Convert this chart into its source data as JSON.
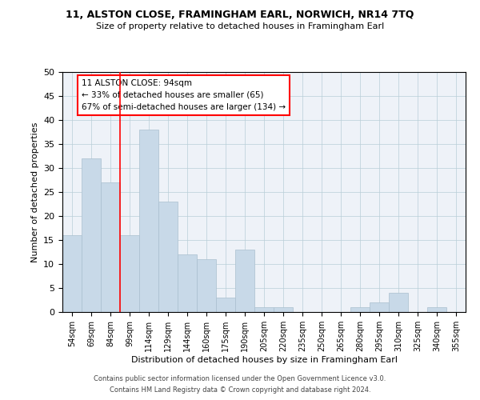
{
  "title1": "11, ALSTON CLOSE, FRAMINGHAM EARL, NORWICH, NR14 7TQ",
  "title2": "Size of property relative to detached houses in Framingham Earl",
  "xlabel": "Distribution of detached houses by size in Framingham Earl",
  "ylabel": "Number of detached properties",
  "categories": [
    "54sqm",
    "69sqm",
    "84sqm",
    "99sqm",
    "114sqm",
    "129sqm",
    "144sqm",
    "160sqm",
    "175sqm",
    "190sqm",
    "205sqm",
    "220sqm",
    "235sqm",
    "250sqm",
    "265sqm",
    "280sqm",
    "295sqm",
    "310sqm",
    "325sqm",
    "340sqm",
    "355sqm"
  ],
  "values": [
    16,
    32,
    27,
    16,
    38,
    23,
    12,
    11,
    3,
    13,
    1,
    1,
    0,
    0,
    0,
    1,
    2,
    4,
    0,
    1,
    0
  ],
  "bar_color": "#c8d9e8",
  "bar_edgecolor": "#aabfcf",
  "ylim": [
    0,
    50
  ],
  "yticks": [
    0,
    5,
    10,
    15,
    20,
    25,
    30,
    35,
    40,
    45,
    50
  ],
  "redline_x": 2.5,
  "annotation_title": "11 ALSTON CLOSE: 94sqm",
  "annotation_line1": "← 33% of detached houses are smaller (65)",
  "annotation_line2": "67% of semi-detached houses are larger (134) →",
  "footnote1": "Contains HM Land Registry data © Crown copyright and database right 2024.",
  "footnote2": "Contains public sector information licensed under the Open Government Licence v3.0."
}
